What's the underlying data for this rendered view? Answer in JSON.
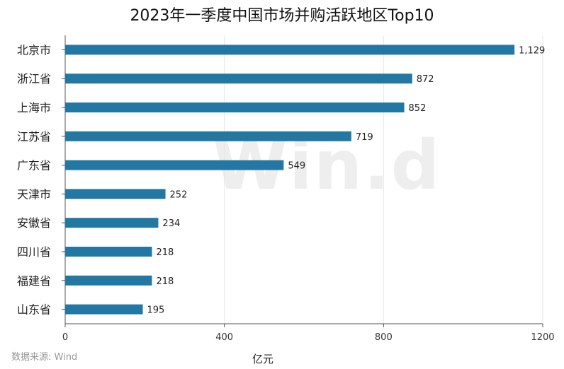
{
  "source": "数据来源: Wind",
  "watermark": "Win.d",
  "colors": {
    "bar": "#2378a3",
    "axis": "#555555",
    "grid": "#e6e6e6"
  },
  "chart_data": {
    "type": "bar",
    "orientation": "horizontal",
    "title": "2023年一季度中国市场并购活跃地区Top10",
    "categories": [
      "北京市",
      "浙江省",
      "上海市",
      "江苏省",
      "广东省",
      "天津市",
      "安徽省",
      "四川省",
      "福建省",
      "山东省"
    ],
    "values": [
      1129,
      872,
      852,
      719,
      549,
      252,
      234,
      218,
      218,
      195
    ],
    "value_labels": [
      "1,129",
      "872",
      "852",
      "719",
      "549",
      "252",
      "234",
      "218",
      "218",
      "195"
    ],
    "xlabel": "亿元",
    "xlim": [
      0,
      1200
    ],
    "xticks": [
      0,
      400,
      800,
      1200
    ],
    "grid": "vertical"
  }
}
